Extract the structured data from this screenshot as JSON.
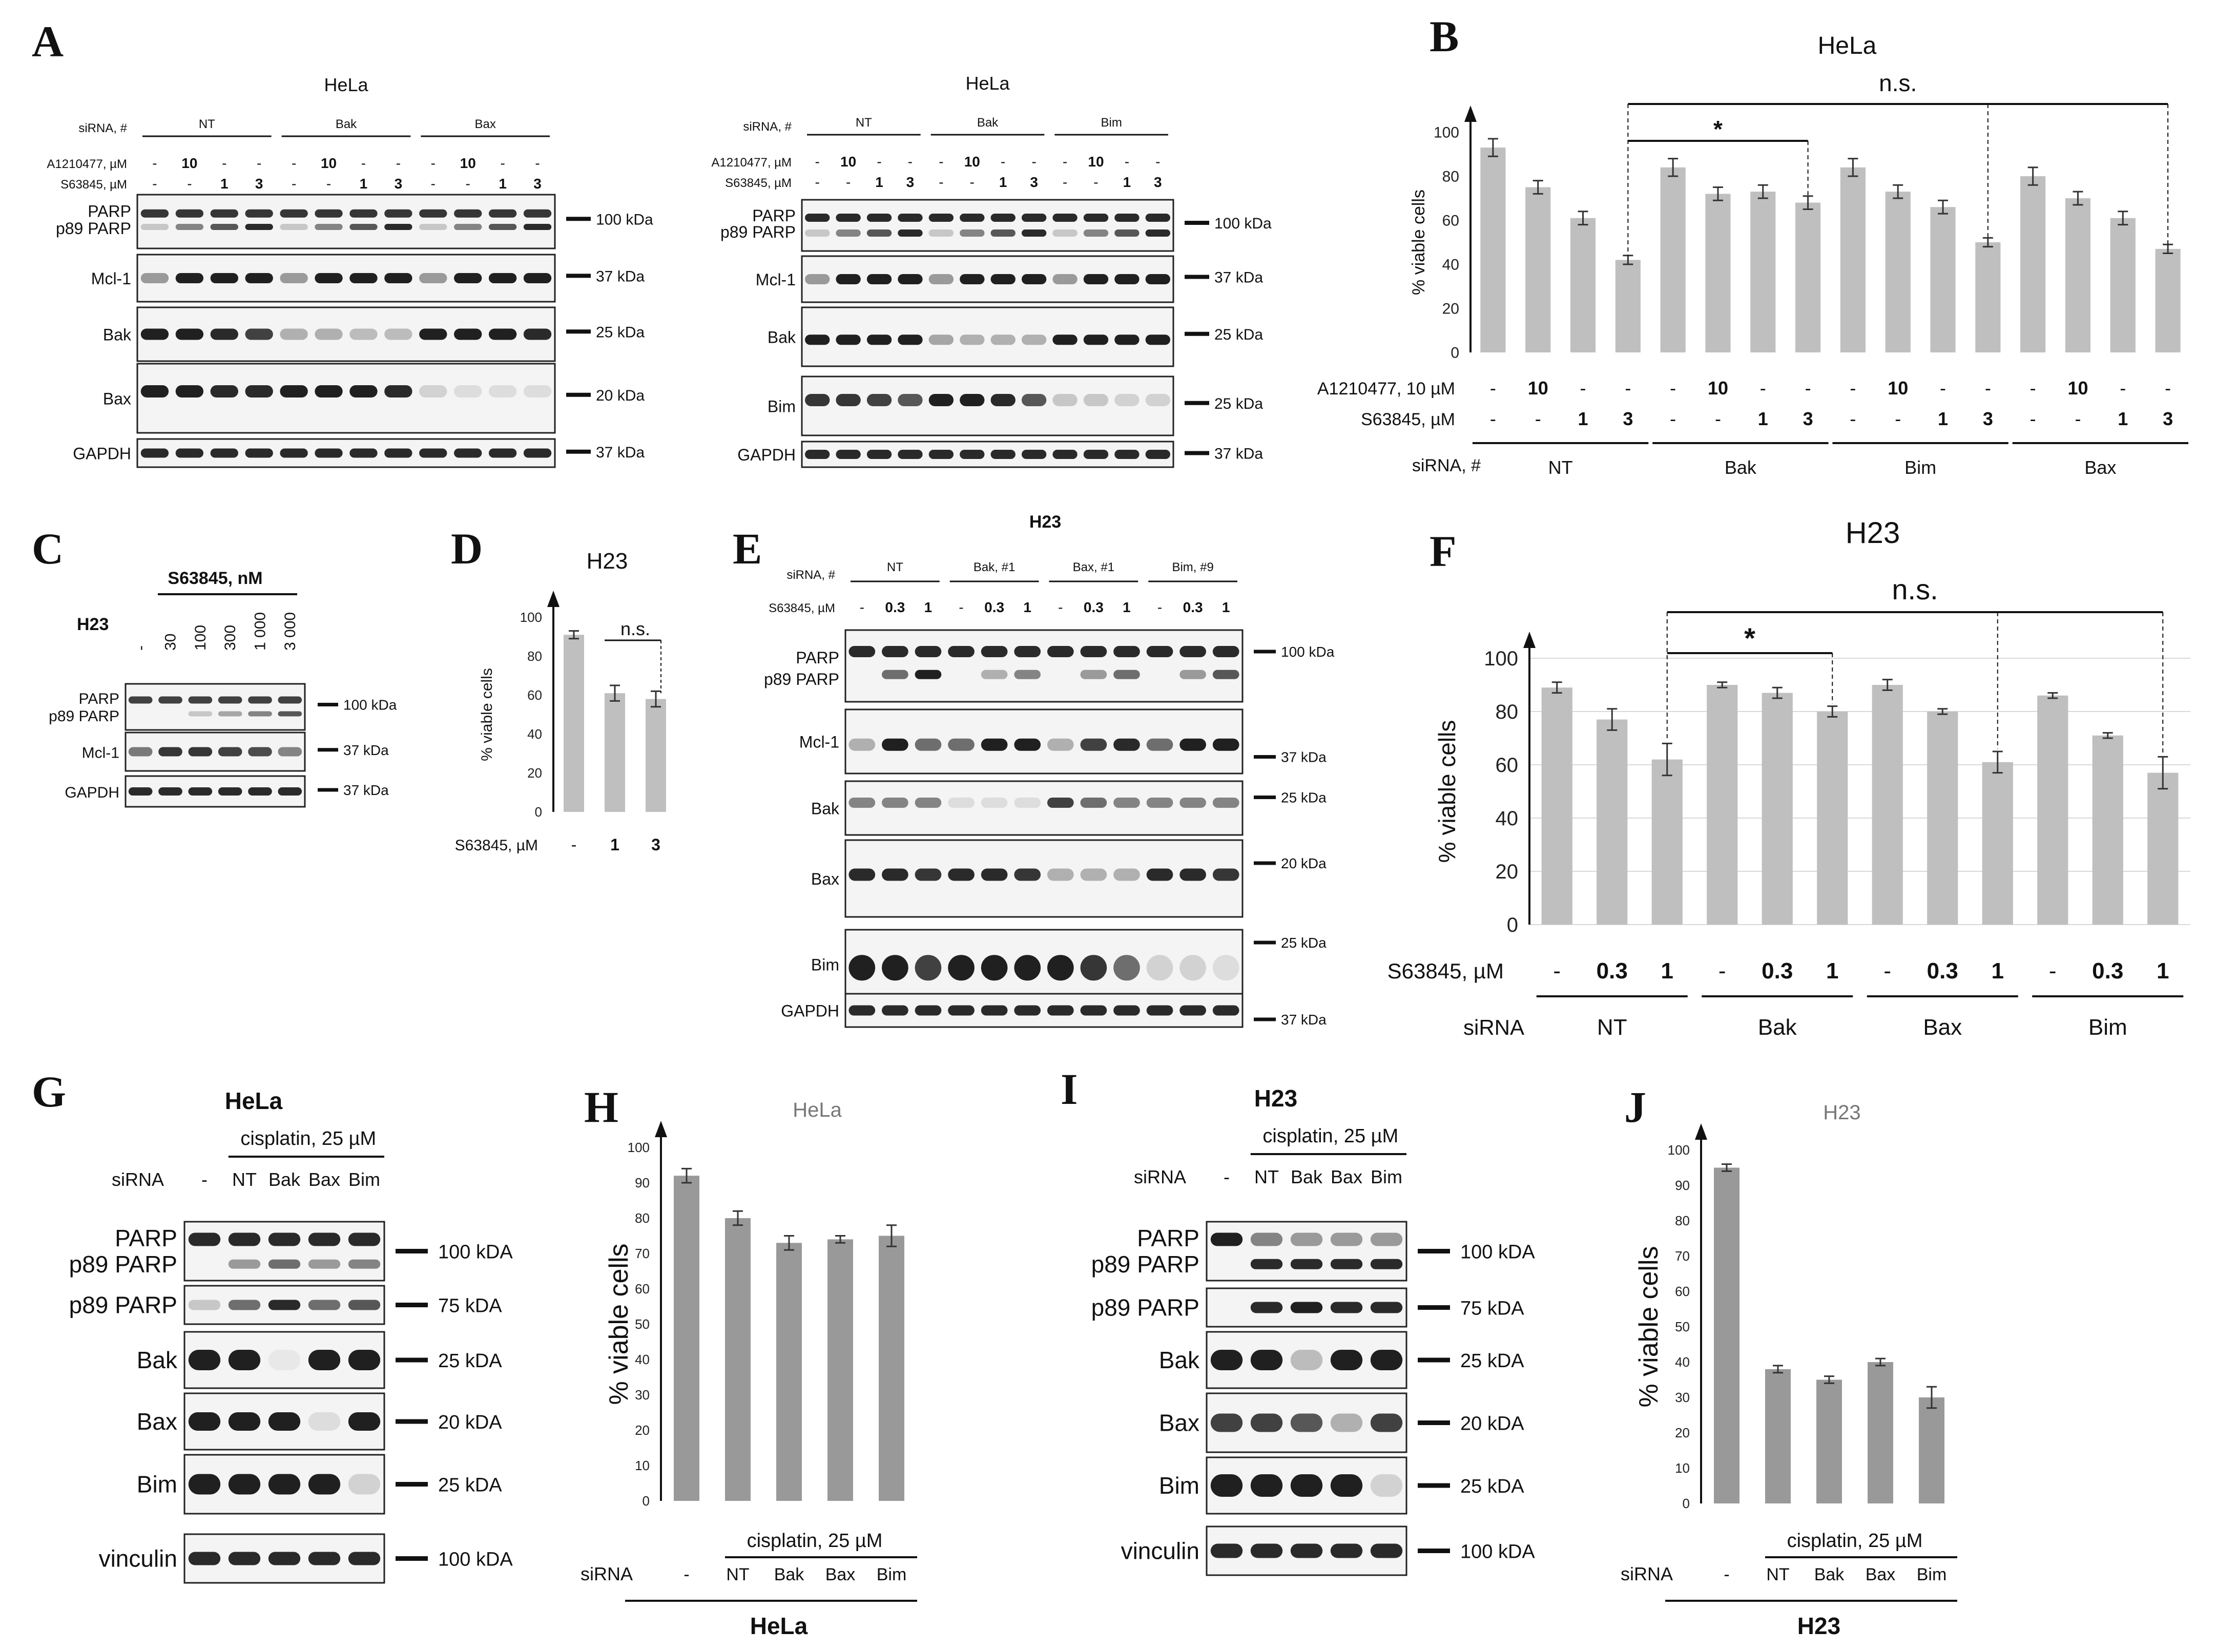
{
  "panels": {
    "A": {
      "letter": "A",
      "left": {
        "cell": "HeLa",
        "siRNA_label": "siRNA, #",
        "groups": [
          "NT",
          "Bak",
          "Bax"
        ],
        "treat1_label": "A1210477, µM",
        "treat2_label": "S63845, µM",
        "treat1": [
          "-",
          "10",
          "-",
          "-",
          "-",
          "10",
          "-",
          "-",
          "-",
          "10",
          "-",
          "-"
        ],
        "treat2": [
          "-",
          "-",
          "1",
          "3",
          "-",
          "-",
          "1",
          "3",
          "-",
          "-",
          "1",
          "3"
        ],
        "blots": [
          {
            "labels": [
              "PARP",
              "p89 PARP"
            ],
            "marker": "100 kDa"
          },
          {
            "labels": [
              "Mcl-1"
            ],
            "marker": "37 kDa"
          },
          {
            "labels": [
              "Bak"
            ],
            "marker": "25 kDa"
          },
          {
            "labels": [
              "Bax"
            ],
            "marker": "20 kDa"
          },
          {
            "labels": [
              "GAPDH"
            ],
            "marker": "37 kDa"
          }
        ]
      },
      "right": {
        "cell": "HeLa",
        "siRNA_label": "siRNA, #",
        "groups": [
          "NT",
          "Bak",
          "Bim"
        ],
        "treat1_label": "A1210477, µM",
        "treat2_label": "S63845, µM",
        "treat1": [
          "-",
          "10",
          "-",
          "-",
          "-",
          "10",
          "-",
          "-",
          "-",
          "10",
          "-",
          "-"
        ],
        "treat2": [
          "-",
          "-",
          "1",
          "3",
          "-",
          "-",
          "1",
          "3",
          "-",
          "-",
          "1",
          "3"
        ],
        "blots": [
          {
            "labels": [
              "PARP",
              "p89 PARP"
            ],
            "marker": "100 kDa"
          },
          {
            "labels": [
              "Mcl-1"
            ],
            "marker": "37 kDa"
          },
          {
            "labels": [
              "Bak"
            ],
            "marker": "25 kDa"
          },
          {
            "labels": [
              "Bim"
            ],
            "marker": "25 kDa"
          },
          {
            "labels": [
              "GAPDH"
            ],
            "marker": "37 kDa"
          }
        ]
      }
    },
    "C": {
      "letter": "C",
      "cell": "H23",
      "header": "S63845, nM",
      "lanes": [
        "-",
        "30",
        "100",
        "300",
        "1 000",
        "3 000"
      ],
      "blots": [
        {
          "labels": [
            "PARP",
            "p89 PARP"
          ],
          "marker": "100 kDa"
        },
        {
          "labels": [
            "Mcl-1"
          ],
          "marker": "37 kDa"
        },
        {
          "labels": [
            "GAPDH"
          ],
          "marker": "37 kDa"
        }
      ]
    },
    "E": {
      "letter": "E",
      "cell": "H23",
      "siRNA_label": "siRNA, #",
      "groups": [
        "NT",
        "Bak, #1",
        "Bax, #1",
        "Bim, #9"
      ],
      "treat_label": "S63845, µM",
      "treat": [
        "-",
        "0.3",
        "1",
        "-",
        "0.3",
        "1",
        "-",
        "0.3",
        "1",
        "-",
        "0.3",
        "1"
      ],
      "blots": [
        {
          "labels": [
            "PARP",
            "p89 PARP"
          ],
          "markers": [
            "100 kDa"
          ]
        },
        {
          "labels": [
            "Mcl-1"
          ],
          "markers": [
            "37 kDa"
          ]
        },
        {
          "labels": [
            "Bak"
          ],
          "markers": [
            "25 kDa"
          ]
        },
        {
          "labels": [
            "Bax"
          ],
          "markers": [
            "20 kDa"
          ]
        },
        {
          "labels": [
            "Bim"
          ],
          "markers": [
            "25 kDa",
            "37 kDa"
          ]
        },
        {
          "labels": [
            "GAPDH"
          ],
          "markers": []
        }
      ]
    },
    "G": {
      "letter": "G",
      "cell": "HeLa",
      "treatment": "cisplatin, 25 µM",
      "siRNA_label": "siRNA",
      "lanes": [
        "-",
        "NT",
        "Bak",
        "Bax",
        "Bim"
      ],
      "blots": [
        {
          "labels": [
            "PARP",
            "p89 PARP"
          ],
          "marker": "100 kDA"
        },
        {
          "labels": [
            "p89 PARP"
          ],
          "marker": "75 kDA"
        },
        {
          "labels": [
            "Bak"
          ],
          "marker": "25 kDA"
        },
        {
          "labels": [
            "Bax"
          ],
          "marker": "20 kDA"
        },
        {
          "labels": [
            "Bim"
          ],
          "marker": "25 kDA"
        },
        {
          "labels": [
            "vinculin"
          ],
          "marker": "100 kDA"
        }
      ]
    },
    "I": {
      "letter": "I",
      "cell": "H23",
      "treatment": "cisplatin, 25 µM",
      "siRNA_label": "siRNA",
      "lanes": [
        "-",
        "NT",
        "Bak",
        "Bax",
        "Bim"
      ],
      "blots": [
        {
          "labels": [
            "PARP",
            "p89 PARP"
          ],
          "marker": "100 kDA"
        },
        {
          "labels": [
            "p89 PARP"
          ],
          "marker": "75 kDA"
        },
        {
          "labels": [
            "Bak"
          ],
          "marker": "25 kDA"
        },
        {
          "labels": [
            "Bax"
          ],
          "marker": "20 kDA"
        },
        {
          "labels": [
            "Bim"
          ],
          "marker": "25 kDA"
        },
        {
          "labels": [
            "vinculin"
          ],
          "marker": "100 kDA"
        }
      ]
    }
  },
  "chart_data": [
    {
      "panel": "B",
      "type": "bar",
      "title": "HeLa",
      "ylabel": "% viable cells",
      "ylim": [
        0,
        100
      ],
      "yticks": [
        0,
        20,
        40,
        60,
        80,
        100
      ],
      "values": [
        93,
        75,
        61,
        42,
        84,
        72,
        73,
        68,
        84,
        73,
        66,
        50,
        80,
        70,
        61,
        47
      ],
      "errors": [
        4,
        3,
        3,
        2,
        4,
        3,
        3,
        3,
        4,
        3,
        3,
        2,
        4,
        3,
        3,
        2
      ],
      "row_labels": [
        "A1210477, 10 µM",
        "S63845, µM",
        "siRNA, #"
      ],
      "row1": [
        "-",
        "10",
        "-",
        "-",
        "-",
        "10",
        "-",
        "-",
        "-",
        "10",
        "-",
        "-",
        "-",
        "10",
        "-",
        "-"
      ],
      "row2": [
        "-",
        "-",
        "1",
        "3",
        "-",
        "-",
        "1",
        "3",
        "-",
        "-",
        "1",
        "3",
        "-",
        "-",
        "1",
        "3"
      ],
      "groups": [
        "NT",
        "Bak",
        "Bim",
        "Bax"
      ],
      "annotations": [
        "n.s.",
        "*"
      ]
    },
    {
      "panel": "D",
      "type": "bar",
      "title": "H23",
      "ylabel": "% viable cells",
      "ylim": [
        0,
        100
      ],
      "yticks": [
        0,
        20,
        40,
        60,
        80,
        100
      ],
      "values": [
        91,
        61,
        58
      ],
      "errors": [
        2,
        4,
        4
      ],
      "row_labels": [
        "S63845, µM"
      ],
      "row1": [
        "-",
        "1",
        "3"
      ],
      "annotations": [
        "n.s."
      ]
    },
    {
      "panel": "F",
      "type": "bar",
      "title": "H23",
      "ylabel": "% viable cells",
      "ylim": [
        0,
        100
      ],
      "yticks": [
        0,
        20,
        40,
        60,
        80,
        100
      ],
      "values": [
        89,
        77,
        62,
        90,
        87,
        80,
        90,
        80,
        61,
        86,
        71,
        57
      ],
      "errors": [
        2,
        4,
        6,
        1,
        2,
        2,
        2,
        1,
        4,
        1,
        1,
        6
      ],
      "row_labels": [
        "S63845, µM",
        "siRNA"
      ],
      "row1": [
        "-",
        "0.3",
        "1",
        "-",
        "0.3",
        "1",
        "-",
        "0.3",
        "1",
        "-",
        "0.3",
        "1"
      ],
      "groups": [
        "NT",
        "Bak",
        "Bax",
        "Bim"
      ],
      "annotations": [
        "n.s.",
        "*"
      ]
    },
    {
      "panel": "H",
      "type": "bar",
      "title": "HeLa",
      "ylabel": "% viable cells",
      "ylim": [
        0,
        100
      ],
      "yticks": [
        0,
        10,
        20,
        30,
        40,
        50,
        60,
        70,
        80,
        90,
        100
      ],
      "values": [
        92,
        80,
        73,
        74,
        75
      ],
      "errors": [
        2,
        2,
        2,
        1,
        3
      ],
      "treatment": "cisplatin, 25 µM",
      "siRNA_label": "siRNA",
      "categories": [
        "-",
        "NT",
        "Bak",
        "Bax",
        "Bim"
      ],
      "bottom_label": "HeLa"
    },
    {
      "panel": "J",
      "type": "bar",
      "title": "H23",
      "ylabel": "% viable cells",
      "ylim": [
        0,
        100
      ],
      "yticks": [
        0,
        10,
        20,
        30,
        40,
        50,
        60,
        70,
        80,
        90,
        100
      ],
      "values": [
        95,
        38,
        35,
        40,
        30
      ],
      "errors": [
        1,
        1,
        1,
        1,
        3
      ],
      "treatment": "cisplatin, 25 µM",
      "siRNA_label": "siRNA",
      "categories": [
        "-",
        "NT",
        "Bak",
        "Bax",
        "Bim"
      ],
      "bottom_label": "H23"
    }
  ]
}
